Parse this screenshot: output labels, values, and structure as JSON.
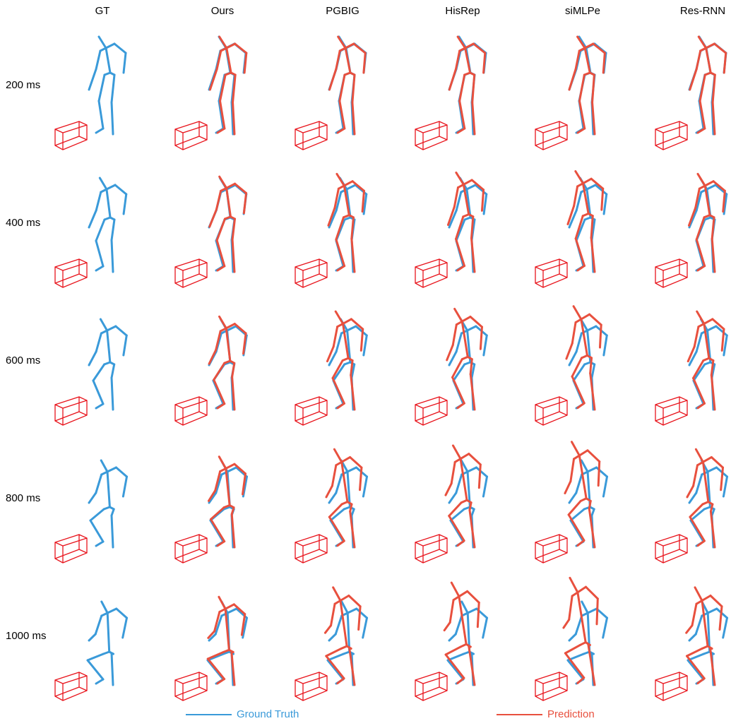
{
  "header": {
    "columns": [
      "GT",
      "Ours",
      "PGBIG",
      "HisRep",
      "siMLPe",
      "Res-RNN"
    ]
  },
  "rows": [
    "200 ms",
    "400 ms",
    "600 ms",
    "800 ms",
    "1000 ms"
  ],
  "legend": {
    "ground_truth": "Ground Truth",
    "prediction": "Prediction"
  }
}
